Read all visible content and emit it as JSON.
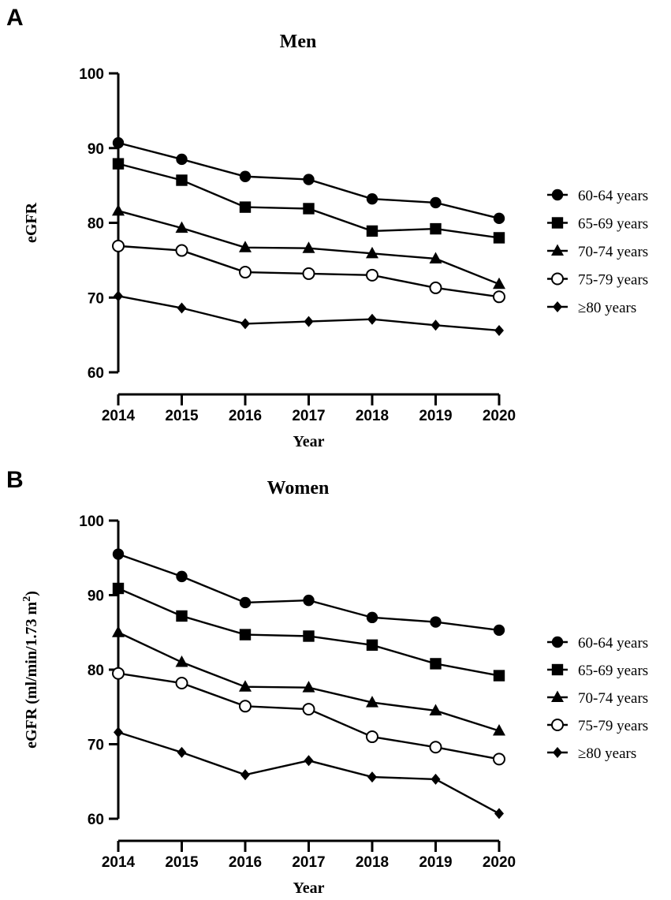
{
  "chart_data": [
    {
      "type": "line",
      "panel_label": "A",
      "title": "Men",
      "xlabel": "Year",
      "ylabel": "eGFR",
      "ylabel_sup": "",
      "x": [
        "2014",
        "2015",
        "2016",
        "2017",
        "2018",
        "2019",
        "2020"
      ],
      "ylim": [
        60,
        100
      ],
      "yticks": [
        "60",
        "70",
        "80",
        "90",
        "100"
      ],
      "grid": false,
      "legend_position": "right",
      "series": [
        {
          "name": "60-64 years",
          "marker": "circle-filled",
          "values": [
            90.7,
            88.5,
            86.2,
            85.8,
            83.2,
            82.7,
            80.6
          ]
        },
        {
          "name": "65-69 years",
          "marker": "square-filled",
          "values": [
            87.9,
            85.7,
            82.1,
            81.9,
            78.9,
            79.2,
            78.0
          ]
        },
        {
          "name": "70-74 years",
          "marker": "triangle-filled",
          "values": [
            81.6,
            79.3,
            76.7,
            76.6,
            75.9,
            75.2,
            71.8
          ]
        },
        {
          "name": "75-79 years",
          "marker": "circle-open",
          "values": [
            76.9,
            76.3,
            73.4,
            73.2,
            73.0,
            71.3,
            70.1
          ]
        },
        {
          "name": "≥80 years",
          "marker": "diamond-filled",
          "values": [
            70.2,
            68.6,
            66.5,
            66.8,
            67.1,
            66.3,
            65.6
          ]
        }
      ]
    },
    {
      "type": "line",
      "panel_label": "B",
      "title": "Women",
      "xlabel": "Year",
      "ylabel": "eGFR (ml/min/1.73 m",
      "ylabel_sup": "2",
      "ylabel_end": ")",
      "x": [
        "2014",
        "2015",
        "2016",
        "2017",
        "2018",
        "2019",
        "2020"
      ],
      "ylim": [
        60,
        100
      ],
      "yticks": [
        "60",
        "70",
        "80",
        "90",
        "100"
      ],
      "grid": false,
      "legend_position": "right",
      "series": [
        {
          "name": "60-64 years",
          "marker": "circle-filled",
          "values": [
            95.5,
            92.5,
            89.0,
            89.3,
            87.0,
            86.4,
            85.3
          ]
        },
        {
          "name": "65-69 years",
          "marker": "square-filled",
          "values": [
            90.9,
            87.2,
            84.7,
            84.5,
            83.3,
            80.8,
            79.2
          ]
        },
        {
          "name": "70-74 years",
          "marker": "triangle-filled",
          "values": [
            85.0,
            81.0,
            77.7,
            77.6,
            75.6,
            74.5,
            71.8
          ]
        },
        {
          "name": "75-79 years",
          "marker": "circle-open",
          "values": [
            79.5,
            78.2,
            75.1,
            74.7,
            71.0,
            69.6,
            68.0
          ]
        },
        {
          "name": "≥80 years",
          "marker": "diamond-filled",
          "values": [
            71.6,
            68.9,
            65.9,
            67.8,
            65.6,
            65.3,
            60.7
          ]
        }
      ]
    }
  ]
}
